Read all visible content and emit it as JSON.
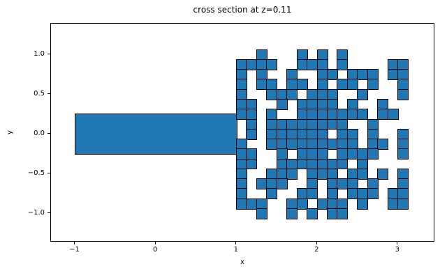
{
  "figure": {
    "title": "cross section at z=0.11",
    "xlabel": "x",
    "ylabel": "y"
  },
  "chart_data": {
    "type": "scatter",
    "subtype": "voxel-cross-section",
    "title": "cross section at z=0.11",
    "xlabel": "x",
    "ylabel": "y",
    "xlim": [
      -1.3,
      3.46
    ],
    "ylim": [
      -1.36,
      1.39
    ],
    "xticks": [
      -1,
      0,
      1,
      2,
      3
    ],
    "xtick_labels": [
      "−1",
      "0",
      "1",
      "2",
      "3"
    ],
    "yticks": [
      1.0,
      0.5,
      0.0,
      -0.5,
      -1.0
    ],
    "ytick_labels": [
      "1.0",
      "0.5",
      "0.0",
      "−0.5",
      "−1.0"
    ],
    "grid_on": false,
    "legend": "none",
    "fill_color": "#1f77b4",
    "edge_color": "#000000",
    "beam_rect": {
      "x0": -1.0,
      "x1": 1.0,
      "y0": -0.25,
      "y1": 0.25
    },
    "voxel_grid": {
      "x_origin": 1.0,
      "y_top": 1.0625,
      "cell_size": 0.125,
      "rows": [
        "00100010101000000",
        "11110011101000011",
        "10100100110111011",
        "10110110101101001",
        "10011101110010001",
        "11001011110100100",
        "11010011111110110",
        "01011111111001000",
        "01011111101101001",
        "10011111111101101",
        "11001011101111001",
        "11001111111010000",
        "10011101110110101",
        "10111001011101001",
        "10010011010111011",
        "11100110111010011",
        "00100101011000000"
      ]
    }
  }
}
